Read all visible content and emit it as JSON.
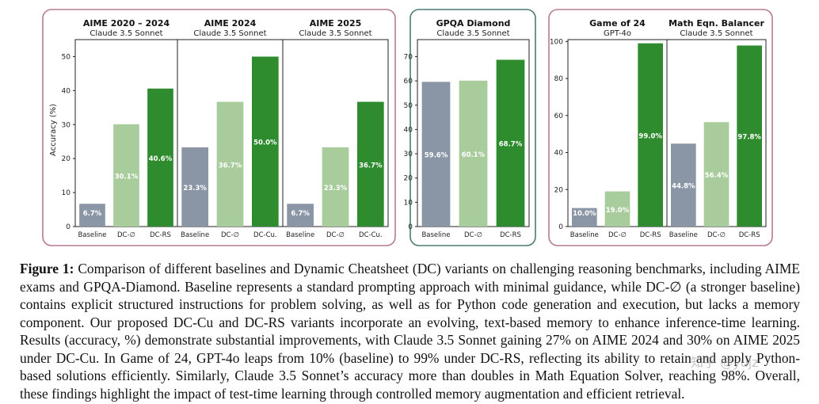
{
  "colors": {
    "baseline": "#8a96a6",
    "dc_empty": "#a8cc9c",
    "dc_best": "#2e8b2e",
    "group_border_pink": "#b57a93",
    "group_border_teal": "#4a7a74"
  },
  "ylabel": "Accuracy (%)",
  "chart_data": [
    {
      "type": "bar",
      "title": "AIME 2020 – 2024",
      "subtitle": "Claude 3.5 Sonnet",
      "categories": [
        "Baseline",
        "DC-∅",
        "DC-RS"
      ],
      "values": [
        6.7,
        30.1,
        40.6
      ],
      "labels": [
        "6.7%",
        "30.1%",
        "40.6%"
      ],
      "ylim": [
        0,
        55
      ],
      "yticks": [
        0,
        10,
        20,
        30,
        40,
        50
      ]
    },
    {
      "type": "bar",
      "title": "AIME 2024",
      "subtitle": "Claude 3.5 Sonnet",
      "categories": [
        "Baseline",
        "DC-∅",
        "DC-Cu."
      ],
      "values": [
        23.3,
        36.7,
        50.0
      ],
      "labels": [
        "23.3%",
        "36.7%",
        "50.0%"
      ],
      "ylim": [
        0,
        55
      ],
      "yticks": [
        0,
        10,
        20,
        30,
        40,
        50
      ]
    },
    {
      "type": "bar",
      "title": "AIME 2025",
      "subtitle": "Claude 3.5 Sonnet",
      "categories": [
        "Baseline",
        "DC-∅",
        "DC-Cu."
      ],
      "values": [
        6.7,
        23.3,
        36.7
      ],
      "labels": [
        "6.7%",
        "23.3%",
        "36.7%"
      ],
      "ylim": [
        0,
        55
      ],
      "yticks": [
        0,
        10,
        20,
        30,
        40,
        50
      ]
    },
    {
      "type": "bar",
      "title": "GPQA Diamond",
      "subtitle": "Claude 3.5 Sonnet",
      "categories": [
        "Baseline",
        "DC-∅",
        "DC-RS"
      ],
      "values": [
        59.6,
        60.1,
        68.7
      ],
      "labels": [
        "59.6%",
        "60.1%",
        "68.7%"
      ],
      "ylim": [
        0,
        77
      ],
      "yticks": [
        0,
        10,
        20,
        30,
        40,
        50,
        60,
        70
      ]
    },
    {
      "type": "bar",
      "title": "Game of 24",
      "subtitle": "GPT-4o",
      "categories": [
        "Baseline",
        "DC-∅",
        "DC-RS"
      ],
      "values": [
        10.0,
        19.0,
        99.0
      ],
      "labels": [
        "10.0%",
        "19.0%",
        "99.0%"
      ],
      "ylim": [
        0,
        101
      ],
      "yticks": [
        0,
        20,
        40,
        60,
        80,
        100
      ]
    },
    {
      "type": "bar",
      "title": "Math Eqn. Balancer",
      "subtitle": "Claude 3.5 Sonnet",
      "categories": [
        "Baseline",
        "DC-∅",
        "DC-RS"
      ],
      "values": [
        44.8,
        56.4,
        97.8
      ],
      "labels": [
        "44.8%",
        "56.4%",
        "97.8%"
      ],
      "ylim": [
        0,
        101
      ],
      "yticks": [
        0,
        20,
        40,
        60,
        80,
        100
      ]
    }
  ],
  "caption": {
    "lead": "Figure 1:",
    "text": " Comparison of different baselines and Dynamic Cheatsheet (DC) variants on challenging reasoning benchmarks, including AIME exams and GPQA-Diamond. Baseline represents a standard prompting approach with minimal guidance, while DC-∅ (a stronger baseline) contains explicit structured instructions for problem solving, as well as for Python code generation and execution, but lacks a memory component. Our proposed DC-Cu and DC-RS variants incorporate an evolving, text-based memory to enhance inference-time learning. Results (accuracy, %) demonstrate substantial improvements, with Claude 3.5 Sonnet gaining 27% on AIME 2024 and 30% on AIME 2025 under DC-Cu. In Game of 24, GPT-4o leaps from 10% (baseline) to 99% under DC-RS, reflecting its ability to retain and apply Python-based solutions efficiently. Similarly, Claude 3.5 Sonnet’s accuracy more than doubles in Math Equation Solver, reaching 98%. Overall, these findings highlight the impact of test-time learning through controlled memory augmentation and efficient retrieval."
  },
  "watermark": "知乎 @yujz"
}
